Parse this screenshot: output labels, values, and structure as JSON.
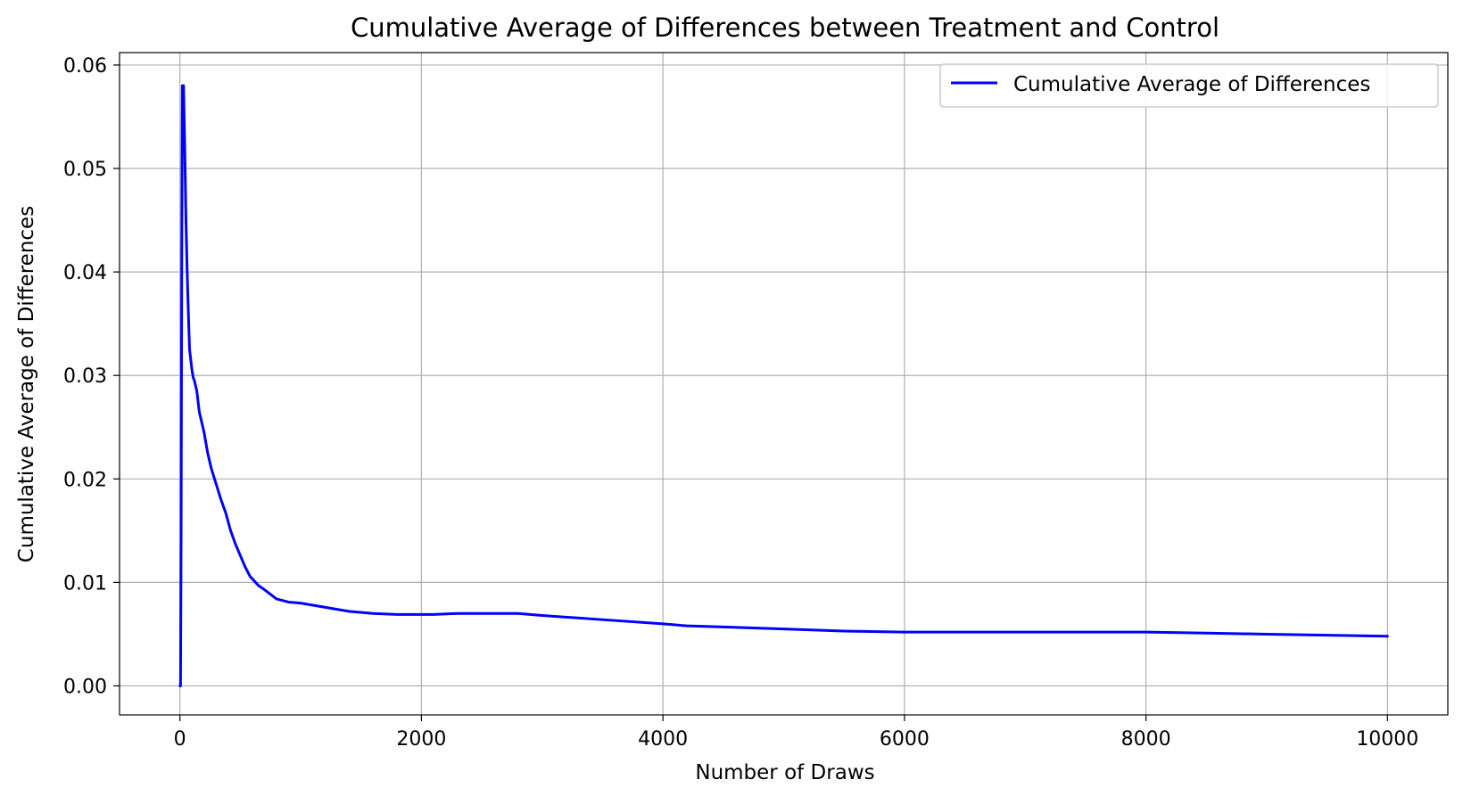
{
  "chart_data": {
    "type": "line",
    "title": "Cumulative Average of Differences between Treatment and Control",
    "xlabel": "Number of Draws",
    "ylabel": "Cumulative Average of Differences",
    "xlim": [
      -500,
      10500
    ],
    "ylim": [
      -0.0028,
      0.0612
    ],
    "x_ticks": [
      0,
      2000,
      4000,
      6000,
      8000,
      10000
    ],
    "x_tick_labels": [
      "0",
      "2000",
      "4000",
      "6000",
      "8000",
      "10000"
    ],
    "y_ticks": [
      0.0,
      0.01,
      0.02,
      0.03,
      0.04,
      0.05,
      0.06
    ],
    "y_tick_labels": [
      "0.00",
      "0.01",
      "0.02",
      "0.03",
      "0.04",
      "0.05",
      "0.06"
    ],
    "grid": true,
    "legend_position": "top-right",
    "series": [
      {
        "name": "Cumulative Average of Differences",
        "color": "#0000ff",
        "x": [
          1,
          5,
          10,
          15,
          20,
          30,
          40,
          50,
          60,
          70,
          80,
          100,
          110,
          120,
          140,
          160,
          180,
          200,
          230,
          260,
          300,
          340,
          380,
          420,
          460,
          500,
          540,
          580,
          650,
          700,
          800,
          900,
          1000,
          1200,
          1400,
          1600,
          1800,
          2000,
          2100,
          2300,
          2500,
          2800,
          3000,
          3500,
          4000,
          4200,
          4500,
          5000,
          5500,
          6000,
          6500,
          7000,
          7500,
          7700,
          8000,
          8500,
          9000,
          9500,
          10000
        ],
        "y": [
          0.0,
          0.0,
          0.015,
          0.04,
          0.058,
          0.058,
          0.052,
          0.045,
          0.04,
          0.036,
          0.0325,
          0.0305,
          0.0298,
          0.0295,
          0.0285,
          0.0265,
          0.0255,
          0.0245,
          0.0225,
          0.021,
          0.0195,
          0.018,
          0.0167,
          0.015,
          0.0137,
          0.0126,
          0.0115,
          0.0106,
          0.0097,
          0.0093,
          0.0084,
          0.0081,
          0.008,
          0.0076,
          0.0072,
          0.007,
          0.0069,
          0.0069,
          0.0069,
          0.007,
          0.007,
          0.007,
          0.0068,
          0.0064,
          0.006,
          0.0058,
          0.0057,
          0.0055,
          0.0053,
          0.0052,
          0.0052,
          0.0052,
          0.0052,
          0.0052,
          0.0052,
          0.0051,
          0.005,
          0.0049,
          0.0048
        ]
      }
    ]
  }
}
